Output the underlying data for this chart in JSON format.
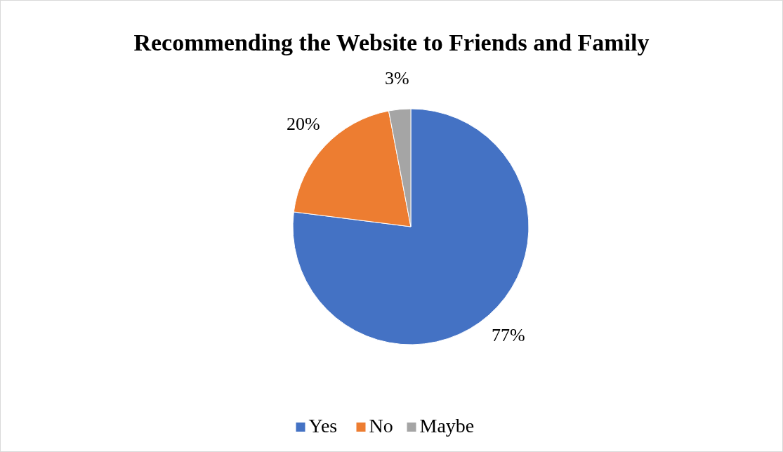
{
  "chart_data": {
    "type": "pie",
    "title": "Recommending the Website to Friends and Family",
    "categories": [
      "Yes",
      "No",
      "Maybe"
    ],
    "values": [
      77,
      20,
      3
    ],
    "colors": [
      "#4472c4",
      "#ed7d31",
      "#a5a5a5"
    ],
    "value_labels": [
      "77%",
      "20%",
      "3%"
    ],
    "legend": "bottom"
  }
}
